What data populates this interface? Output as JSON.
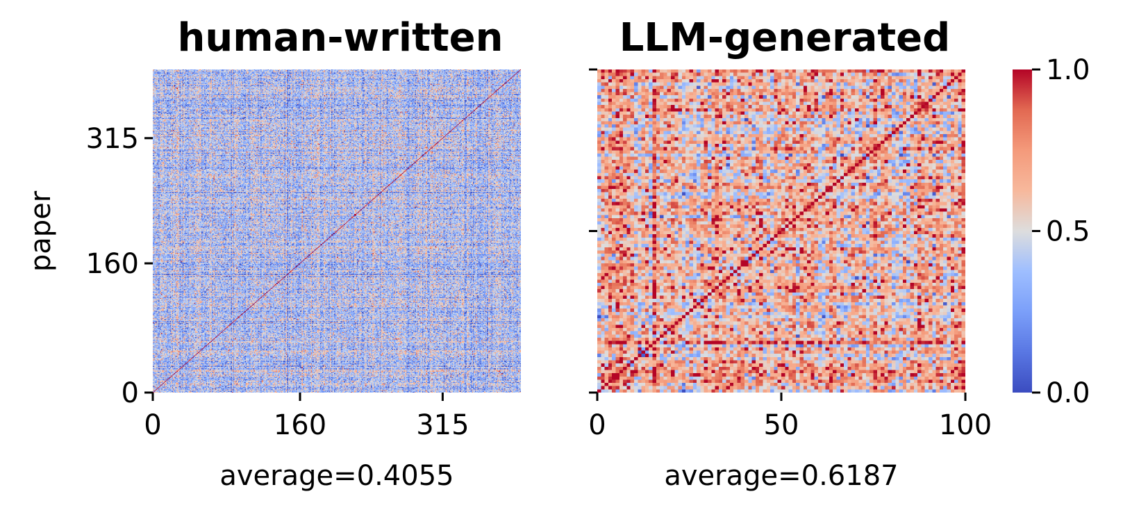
{
  "chart_data": [
    {
      "type": "heatmap",
      "title": "human-written",
      "xlabel": "average=0.4055",
      "ylabel": "paper",
      "n": 400,
      "xticks": [
        0,
        160,
        315
      ],
      "yticks": [
        0,
        160,
        315
      ],
      "average": 0.4055,
      "diagonal": 1.0,
      "colormap": "coolwarm",
      "vmin": 0.0,
      "vmax": 1.0
    },
    {
      "type": "heatmap",
      "title": "LLM-generated",
      "xlabel": "average=0.6187",
      "ylabel": "",
      "n": 100,
      "xticks": [
        0,
        50,
        100
      ],
      "yticks": [
        0,
        50,
        100
      ],
      "ytick_labels_visible": false,
      "average": 0.6187,
      "diagonal": 1.0,
      "colormap": "coolwarm",
      "vmin": 0.0,
      "vmax": 1.0
    }
  ],
  "colorbar": {
    "ticks": [
      "0.0",
      "0.5",
      "1.0"
    ],
    "colors": {
      "low": "#3b4cc0",
      "mid": "#dddddd",
      "high": "#b40426"
    }
  }
}
